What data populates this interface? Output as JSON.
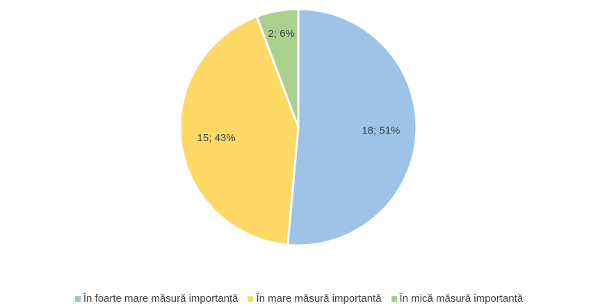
{
  "chart_data": {
    "type": "pie",
    "categories": [
      "În foarte mare măsură importantă",
      "În mare măsură importantă",
      "În mică măsură importantă"
    ],
    "values": [
      18,
      15,
      2
    ],
    "value_labels": [
      "18; 51%",
      "15; 43%",
      "2; 6%"
    ],
    "colors": [
      "#9dc3e6",
      "#ffd966",
      "#a9d18e"
    ],
    "legend": "bottom"
  }
}
